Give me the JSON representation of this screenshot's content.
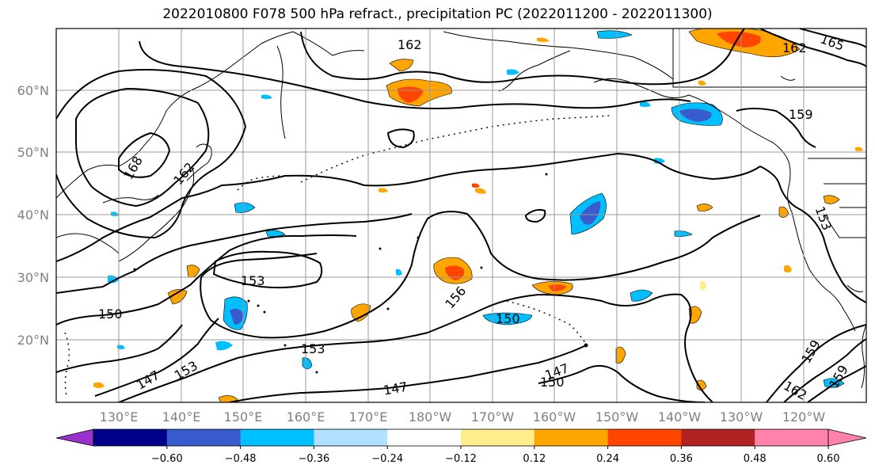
{
  "title": "2022010800 F078 500 hPa refract., precipitation PC (2022011200 - 2022011300)",
  "lat_labels": [
    "60°N",
    "50°N",
    "40°N",
    "30°N",
    "20°N"
  ],
  "lon_labels": [
    "130°E",
    "140°E",
    "150°E",
    "160°E",
    "170°E",
    "180°W",
    "170°W",
    "160°W",
    "150°W",
    "140°W",
    "130°W",
    "120°W"
  ],
  "contour_labels": [
    "162",
    "162",
    "168",
    "162",
    "159",
    "153",
    "153",
    "150",
    "153",
    "153",
    "147",
    "156",
    "150",
    "147",
    "150",
    "147",
    "159",
    "162",
    "159",
    "153",
    "165"
  ],
  "colorbar": {
    "ticks": [
      "−0.60",
      "−0.48",
      "−0.36",
      "−0.24",
      "−0.12",
      "0.12",
      "0.24",
      "0.36",
      "0.48",
      "0.60"
    ],
    "colors": [
      "#9932cc",
      "#00008b",
      "#3a5bcd",
      "#00bfff",
      "#b0e2ff",
      "#ffffff",
      "#ffec8b",
      "#ffa500",
      "#ff4500",
      "#b22222",
      "#ff82ab",
      "#ff82ab"
    ]
  }
}
